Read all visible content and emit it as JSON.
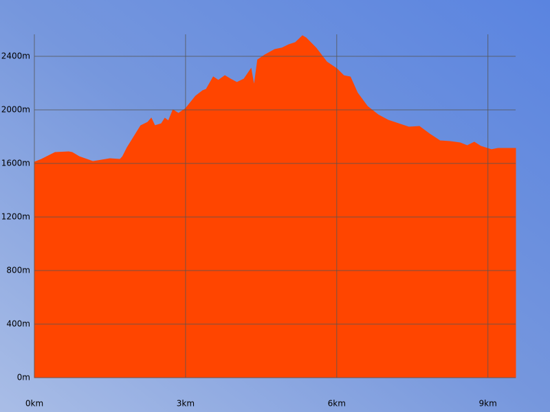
{
  "chart_data": {
    "type": "area",
    "color": "#ff4500",
    "grid": true,
    "x": [
      0,
      0.14,
      0.41,
      0.68,
      0.75,
      0.89,
      1.16,
      1.5,
      1.7,
      1.75,
      1.84,
      2.11,
      2.25,
      2.32,
      2.39,
      2.52,
      2.59,
      2.66,
      2.75,
      2.86,
      3.0,
      3.2,
      3.34,
      3.41,
      3.55,
      3.65,
      3.78,
      3.89,
      4.02,
      4.16,
      4.3,
      4.36,
      4.43,
      4.57,
      4.77,
      4.91,
      5.05,
      5.18,
      5.32,
      5.39,
      5.59,
      5.8,
      6.0,
      6.14,
      6.27,
      6.41,
      6.61,
      6.82,
      7.02,
      7.23,
      7.43,
      7.64,
      7.84,
      8.05,
      8.25,
      8.45,
      8.59,
      8.73,
      8.86,
      9.07,
      9.2,
      9.55
    ],
    "values": [
      1610,
      1631,
      1682,
      1687,
      1682,
      1651,
      1615,
      1636,
      1631,
      1651,
      1718,
      1882,
      1908,
      1938,
      1882,
      1897,
      1938,
      1918,
      2000,
      1974,
      2010,
      2103,
      2144,
      2154,
      2246,
      2221,
      2256,
      2231,
      2205,
      2231,
      2308,
      2179,
      2374,
      2410,
      2451,
      2462,
      2487,
      2503,
      2554,
      2538,
      2462,
      2359,
      2308,
      2256,
      2246,
      2128,
      2026,
      1964,
      1923,
      1897,
      1872,
      1877,
      1821,
      1769,
      1764,
      1754,
      1733,
      1759,
      1728,
      1703,
      1713,
      1713
    ],
    "xlim": [
      0,
      9.55
    ],
    "ylim": [
      0,
      2564
    ],
    "xticks": [
      {
        "value": 0,
        "label": "0km"
      },
      {
        "value": 3,
        "label": "3km"
      },
      {
        "value": 6,
        "label": "6km"
      },
      {
        "value": 9,
        "label": "9km"
      }
    ],
    "yticks": [
      {
        "value": 0,
        "label": "0m"
      },
      {
        "value": 400,
        "label": "400m"
      },
      {
        "value": 800,
        "label": "800m"
      },
      {
        "value": 1200,
        "label": "1200m"
      },
      {
        "value": 1600,
        "label": "1600m"
      },
      {
        "value": 2000,
        "label": "2000m"
      },
      {
        "value": 2400,
        "label": "2400m"
      }
    ]
  }
}
